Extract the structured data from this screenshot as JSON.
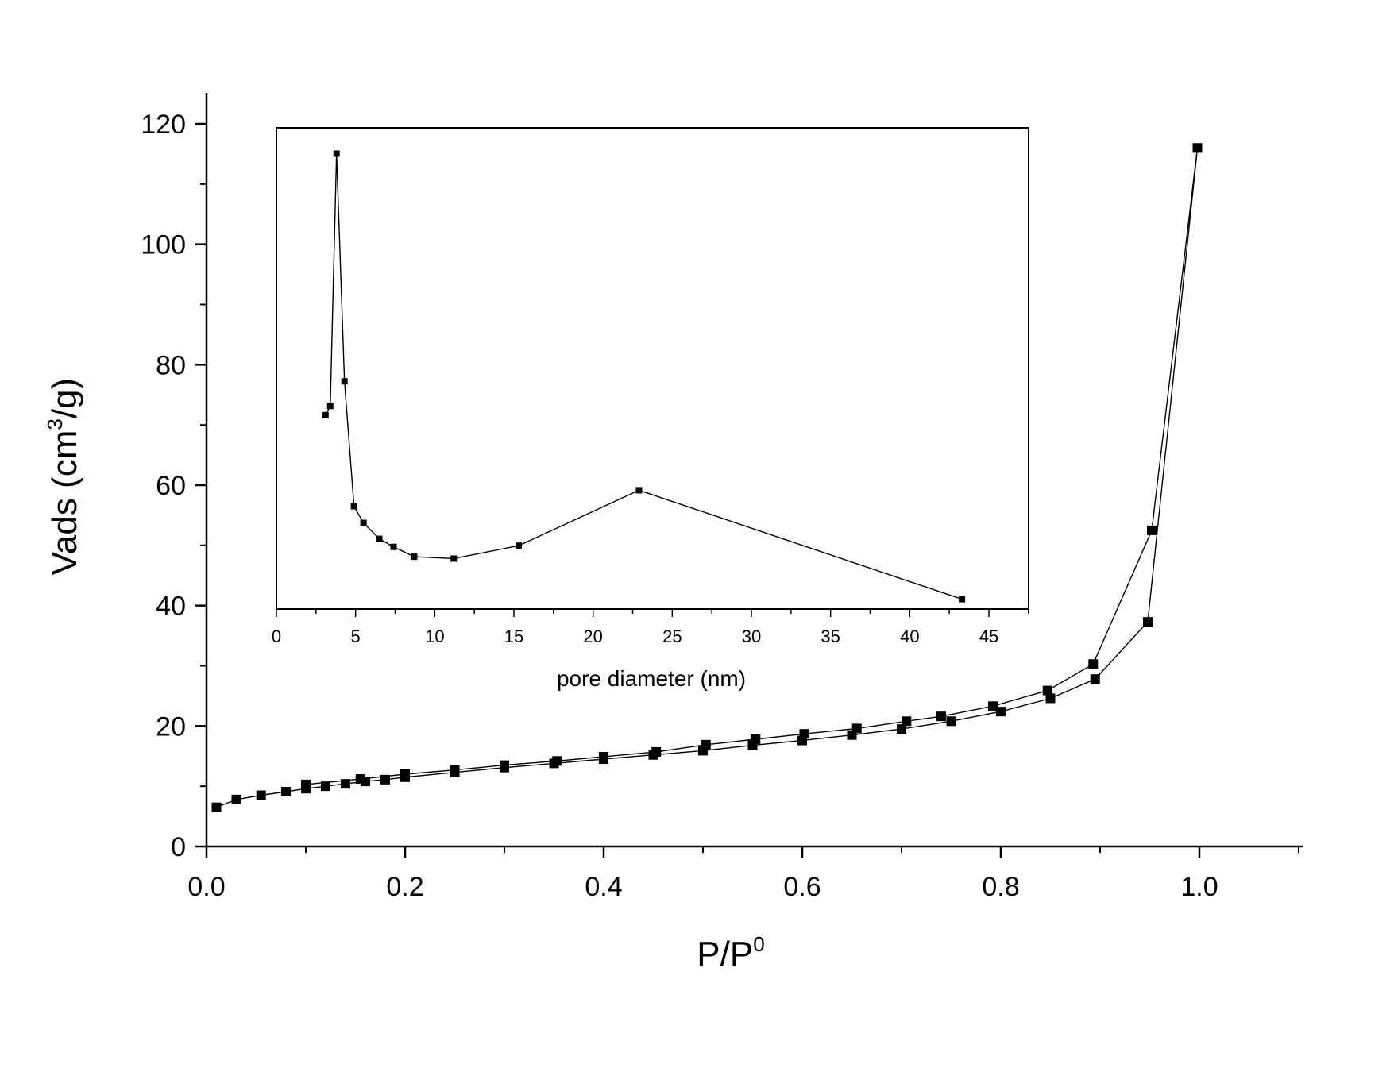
{
  "chart_data": [
    {
      "id": "main",
      "type": "scatter",
      "xlabel": "P/P",
      "xlabel_superscript": "0",
      "ylabel_prefix": "Vads (cm",
      "ylabel_superscript": "3",
      "ylabel_suffix": "/g)",
      "xlim": [
        0.0,
        1.1
      ],
      "ylim": [
        0,
        125
      ],
      "x_ticks": [
        0.0,
        0.2,
        0.4,
        0.6,
        0.8,
        1.0
      ],
      "x_tick_labels": [
        "0.0",
        "0.2",
        "0.4",
        "0.6",
        "0.8",
        "1.0"
      ],
      "y_ticks": [
        0,
        20,
        40,
        60,
        80,
        100,
        120
      ],
      "y_tick_labels": [
        "0",
        "20",
        "40",
        "60",
        "80",
        "100",
        "120"
      ],
      "grid": false,
      "marker": "square",
      "series": [
        {
          "x": [
            0.01,
            0.03,
            0.055,
            0.08,
            0.1,
            0.12,
            0.14,
            0.16,
            0.18,
            0.2,
            0.25,
            0.3,
            0.35,
            0.4,
            0.45,
            0.5,
            0.55,
            0.6,
            0.65,
            0.7,
            0.75,
            0.8,
            0.85,
            0.895,
            0.948,
            0.998
          ],
          "y": [
            6.5,
            7.8,
            8.5,
            9.1,
            9.6,
            10.0,
            10.4,
            10.8,
            11.1,
            11.5,
            12.3,
            13.1,
            13.8,
            14.5,
            15.2,
            15.9,
            16.8,
            17.6,
            18.5,
            19.5,
            20.8,
            22.4,
            24.6,
            27.8,
            37.3,
            116
          ]
        },
        {
          "x": [
            0.998,
            0.952,
            0.893,
            0.847,
            0.792,
            0.74,
            0.705,
            0.655,
            0.602,
            0.553,
            0.503,
            0.453,
            0.4,
            0.353,
            0.3,
            0.25,
            0.2,
            0.155,
            0.1
          ],
          "y": [
            116,
            52.5,
            30.3,
            25.9,
            23.3,
            21.6,
            20.8,
            19.6,
            18.7,
            17.8,
            16.9,
            15.7,
            14.9,
            14.2,
            13.5,
            12.7,
            12.0,
            11.2,
            10.3
          ]
        }
      ]
    },
    {
      "id": "inset",
      "type": "line",
      "xlabel": "pore diameter (nm)",
      "ylabel": "",
      "xlim": [
        0,
        47.5
      ],
      "ylim": [
        40,
        116
      ],
      "x_ticks": [
        0,
        5,
        10,
        15,
        20,
        25,
        30,
        35,
        40,
        45
      ],
      "x_tick_labels": [
        "0",
        "5",
        "10",
        "15",
        "20",
        "25",
        "30",
        "35",
        "40",
        "45"
      ],
      "grid": false,
      "marker": "square",
      "series": [
        {
          "x": [
            3.1,
            3.4,
            3.8,
            4.3,
            4.9,
            5.5,
            6.5,
            7.4,
            8.7,
            11.2,
            15.3,
            22.9,
            43.3
          ],
          "y": [
            71.5,
            73,
            114,
            77,
            56.7,
            54,
            51.4,
            50.1,
            48.5,
            48.2,
            50.3,
            59.3,
            41.6
          ]
        }
      ]
    }
  ]
}
